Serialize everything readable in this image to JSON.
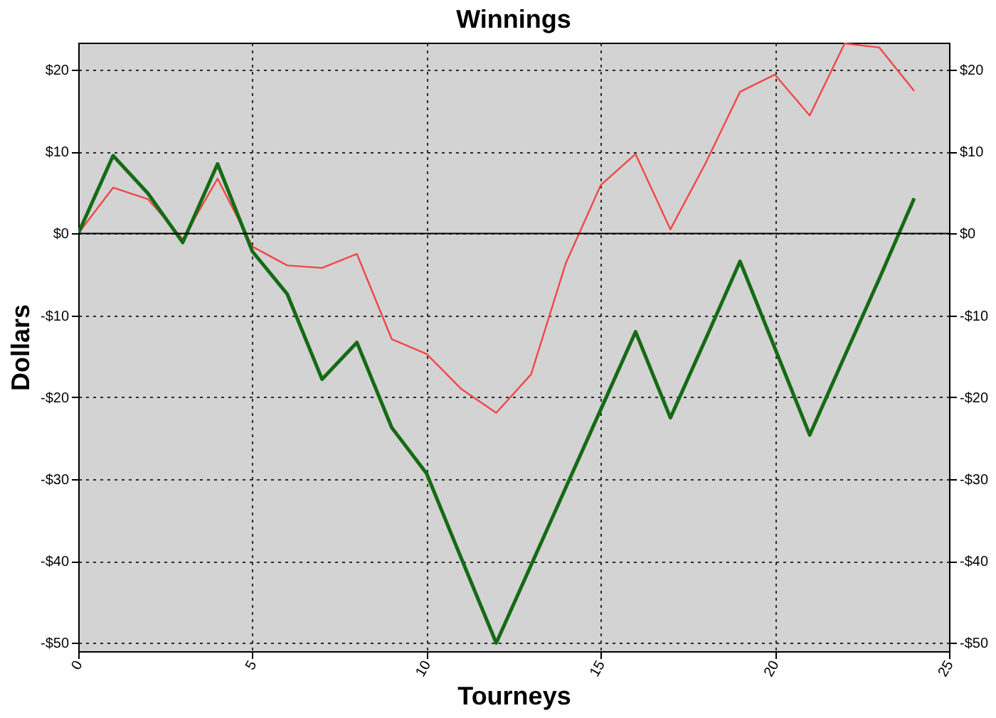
{
  "chart_data": {
    "type": "line",
    "title": "Winnings",
    "xlabel": "Tourneys",
    "ylabel": "Dollars",
    "x": [
      0,
      1,
      2,
      3,
      4,
      5,
      6,
      7,
      8,
      9,
      10,
      11,
      12,
      13,
      14,
      15,
      16,
      17,
      18,
      19,
      20,
      21,
      22,
      23,
      24
    ],
    "series": [
      {
        "color": "#f04848",
        "values": [
          0,
          5.6,
          4.2,
          -0.7,
          6.7,
          -1.6,
          -3.9,
          -4.2,
          -2.5,
          -12.9,
          -14.7,
          -19,
          -21.9,
          -17.2,
          -3.6,
          5.9,
          9.7,
          0.5,
          8.5,
          17.3,
          19.4,
          14.4,
          23.2,
          22.7,
          17.4
        ]
      },
      {
        "color": "#156b15",
        "values": [
          0,
          9.5,
          4.9,
          -1.1,
          8.5,
          -2.2,
          -7.4,
          -17.8,
          -13.3,
          -23.7,
          -29.3,
          -39.7,
          -50,
          -40.5,
          -31,
          -21.5,
          -12,
          -22.5,
          -13,
          -3.4,
          -14,
          -24.6,
          -15,
          -5.5,
          4.3
        ]
      }
    ],
    "xlim": [
      0,
      25
    ],
    "xticks": [
      0,
      5,
      10,
      15,
      20,
      25
    ],
    "ylim": [
      -51,
      23.3
    ],
    "yticks": [
      {
        "value": -50,
        "label": "-$50"
      },
      {
        "value": -40,
        "label": "-$40"
      },
      {
        "value": -30,
        "label": "-$30"
      },
      {
        "value": -20,
        "label": "-$20"
      },
      {
        "value": -10,
        "label": "-$10"
      },
      {
        "value": 0,
        "label": "$0"
      },
      {
        "value": 10,
        "label": "$10"
      },
      {
        "value": 20,
        "label": "$20"
      }
    ],
    "y2lim": [
      -51,
      23.3
    ],
    "y2ticks": [
      {
        "value": -50,
        "label": "-$50"
      },
      {
        "value": -40,
        "label": "-$40"
      },
      {
        "value": -30,
        "label": "-$30"
      },
      {
        "value": -20,
        "label": "-$20"
      },
      {
        "value": -10,
        "label": "-$10"
      },
      {
        "value": 0,
        "label": "$0"
      },
      {
        "value": 10,
        "label": "$10"
      },
      {
        "value": 20,
        "label": "$20"
      }
    ],
    "ref_lines": [
      {
        "axis": "y",
        "value": 0,
        "color": "#000000"
      }
    ],
    "grid": true,
    "marker": "none",
    "line_style": "solid"
  }
}
